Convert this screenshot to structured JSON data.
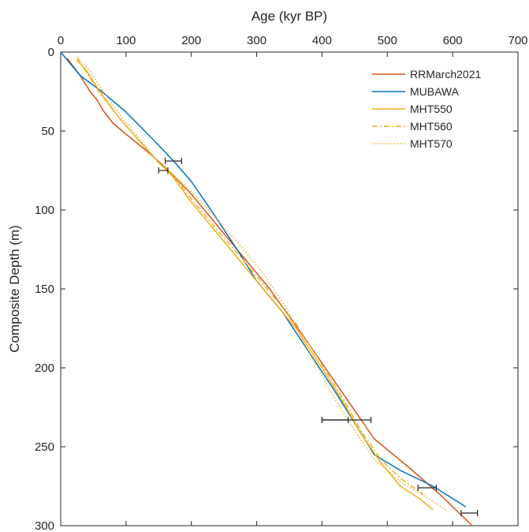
{
  "chart_data": {
    "type": "line",
    "xlabel": "Age (kyr BP)",
    "ylabel": "Composite Depth (m)",
    "xlim": [
      0,
      700
    ],
    "ylim": [
      0,
      300
    ],
    "y_reversed": true,
    "x_axis_position": "top",
    "x_ticks": [
      "0",
      "100",
      "200",
      "300",
      "400",
      "500",
      "600",
      "700"
    ],
    "y_ticks": [
      "0",
      "50",
      "100",
      "150",
      "200",
      "250",
      "300"
    ],
    "legend_position": "top-right",
    "grid": false,
    "series": [
      {
        "name": "RRMarch2021",
        "color": "#d95319",
        "dash": "solid",
        "points": [
          [
            10,
            4
          ],
          [
            30,
            15
          ],
          [
            45,
            25
          ],
          [
            55,
            30
          ],
          [
            65,
            37
          ],
          [
            80,
            45
          ],
          [
            100,
            52
          ],
          [
            130,
            62
          ],
          [
            160,
            73
          ],
          [
            200,
            90
          ],
          [
            260,
            120
          ],
          [
            320,
            150
          ],
          [
            380,
            185
          ],
          [
            430,
            215
          ],
          [
            480,
            245
          ],
          [
            530,
            262
          ],
          [
            580,
            280
          ],
          [
            630,
            300
          ]
        ]
      },
      {
        "name": "MUBAWA",
        "color": "#0072bd",
        "dash": "solid",
        "points": [
          [
            0,
            0
          ],
          [
            30,
            15
          ],
          [
            60,
            24
          ],
          [
            100,
            38
          ],
          [
            150,
            59
          ],
          [
            175,
            70
          ],
          [
            200,
            82
          ],
          [
            230,
            100
          ],
          [
            270,
            125
          ],
          [
            300,
            145
          ],
          [
            340,
            165
          ],
          [
            380,
            190
          ],
          [
            420,
            215
          ],
          [
            450,
            235
          ],
          [
            480,
            255
          ],
          [
            520,
            265
          ],
          [
            570,
            275
          ],
          [
            620,
            288
          ]
        ]
      },
      {
        "name": "MHT550",
        "color": "#edb120",
        "dash": "solid",
        "points": [
          [
            25,
            5
          ],
          [
            40,
            12
          ],
          [
            60,
            25
          ],
          [
            90,
            42
          ],
          [
            120,
            56
          ],
          [
            150,
            70
          ],
          [
            170,
            78
          ],
          [
            200,
            95
          ],
          [
            240,
            115
          ],
          [
            280,
            135
          ],
          [
            320,
            155
          ],
          [
            360,
            175
          ],
          [
            400,
            200
          ],
          [
            430,
            220
          ],
          [
            460,
            242
          ],
          [
            490,
            260
          ],
          [
            520,
            275
          ],
          [
            550,
            283
          ],
          [
            570,
            290
          ]
        ]
      },
      {
        "name": "MHT560",
        "color": "#edb120",
        "dash": "dashdot",
        "points": [
          [
            25,
            4
          ],
          [
            40,
            13
          ],
          [
            60,
            26
          ],
          [
            90,
            42
          ],
          [
            120,
            56
          ],
          [
            150,
            70
          ],
          [
            170,
            77
          ],
          [
            200,
            93
          ],
          [
            240,
            113
          ],
          [
            280,
            132
          ],
          [
            320,
            152
          ],
          [
            360,
            172
          ],
          [
            400,
            198
          ],
          [
            430,
            218
          ],
          [
            460,
            240
          ],
          [
            490,
            258
          ],
          [
            520,
            270
          ],
          [
            555,
            280
          ]
        ]
      },
      {
        "name": "MHT570",
        "color": "#edb120",
        "dash": "dotted",
        "points": [
          [
            25,
            3
          ],
          [
            45,
            12
          ],
          [
            65,
            25
          ],
          [
            95,
            42
          ],
          [
            125,
            57
          ],
          [
            150,
            70
          ],
          [
            180,
            80
          ],
          [
            220,
            97
          ],
          [
            270,
            120
          ],
          [
            310,
            140
          ],
          [
            345,
            162
          ],
          [
            380,
            190
          ],
          [
            420,
            220
          ],
          [
            450,
            240
          ],
          [
            480,
            258
          ],
          [
            520,
            272
          ],
          [
            560,
            282
          ],
          [
            590,
            290
          ]
        ]
      }
    ],
    "error_bars": [
      {
        "x": 172,
        "y": 69,
        "xmin": 160,
        "xmax": 185
      },
      {
        "x": 157,
        "y": 75,
        "xmin": 150,
        "xmax": 164
      },
      {
        "x": 420,
        "y": 233,
        "xmin": 400,
        "xmax": 440
      },
      {
        "x": 437,
        "y": 233,
        "xmin": 400,
        "xmax": 475
      },
      {
        "x": 560,
        "y": 276,
        "xmin": 547,
        "xmax": 575
      },
      {
        "x": 625,
        "y": 292,
        "xmin": 613,
        "xmax": 638
      }
    ]
  }
}
